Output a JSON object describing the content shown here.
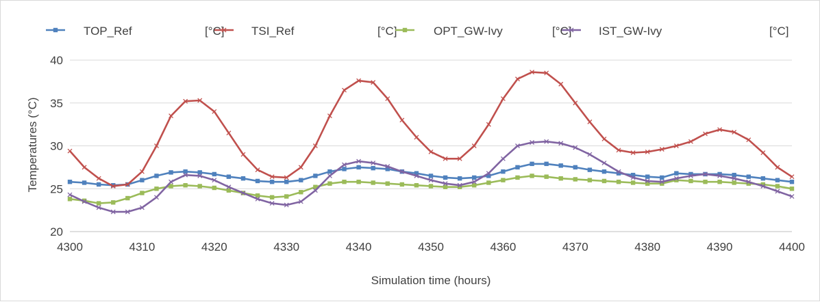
{
  "chart_data": {
    "type": "line",
    "xlabel": "Simulation time (hours)",
    "ylabel": "Temperatures (°C)",
    "xlim": [
      4300,
      4400
    ],
    "ylim": [
      20,
      40
    ],
    "xticks": [
      4300,
      4310,
      4320,
      4330,
      4340,
      4350,
      4360,
      4370,
      4380,
      4390,
      4400
    ],
    "yticks": [
      20,
      25,
      30,
      35,
      40
    ],
    "grid": "horizontal",
    "legend_position": "top",
    "x": [
      4300,
      4302,
      4304,
      4306,
      4308,
      4310,
      4312,
      4314,
      4316,
      4318,
      4320,
      4322,
      4324,
      4326,
      4328,
      4330,
      4332,
      4334,
      4336,
      4338,
      4340,
      4342,
      4344,
      4346,
      4348,
      4350,
      4352,
      4354,
      4356,
      4358,
      4360,
      4362,
      4364,
      4366,
      4368,
      4370,
      4372,
      4374,
      4376,
      4378,
      4380,
      4382,
      4384,
      4386,
      4388,
      4390,
      4392,
      4394,
      4396,
      4398,
      4400
    ],
    "series": [
      {
        "name": "TOP_Ref",
        "unit": "[°C]",
        "color": "#4f81bd",
        "marker": "square",
        "values": [
          25.8,
          25.7,
          25.5,
          25.4,
          25.5,
          26.0,
          26.5,
          26.9,
          27.0,
          26.9,
          26.7,
          26.4,
          26.2,
          25.9,
          25.8,
          25.8,
          26.0,
          26.5,
          27.0,
          27.3,
          27.5,
          27.4,
          27.3,
          27.0,
          26.8,
          26.5,
          26.3,
          26.2,
          26.3,
          26.5,
          27.0,
          27.5,
          27.9,
          27.9,
          27.7,
          27.5,
          27.2,
          27.0,
          26.8,
          26.6,
          26.4,
          26.3,
          26.8,
          26.7,
          26.7,
          26.7,
          26.6,
          26.4,
          26.2,
          26.0,
          25.8
        ]
      },
      {
        "name": "TSI_Ref",
        "unit": "[°C]",
        "color": "#c0504d",
        "marker": "x",
        "values": [
          29.4,
          27.5,
          26.2,
          25.3,
          25.5,
          27.0,
          30.0,
          33.5,
          35.2,
          35.3,
          34.0,
          31.5,
          29.0,
          27.2,
          26.4,
          26.3,
          27.5,
          30.0,
          33.5,
          36.5,
          37.6,
          37.4,
          35.5,
          33.0,
          31.0,
          29.3,
          28.5,
          28.5,
          30.0,
          32.5,
          35.5,
          37.8,
          38.6,
          38.5,
          37.2,
          35.0,
          32.8,
          30.8,
          29.5,
          29.2,
          29.3,
          29.6,
          30.0,
          30.5,
          31.4,
          31.9,
          31.6,
          30.7,
          29.2,
          27.5,
          26.4
        ]
      },
      {
        "name": "OPT_GW-Ivy",
        "unit": "[°C]",
        "color": "#9bbb59",
        "marker": "square",
        "values": [
          23.8,
          23.6,
          23.3,
          23.4,
          23.9,
          24.5,
          25.0,
          25.3,
          25.4,
          25.3,
          25.1,
          24.8,
          24.5,
          24.2,
          24.0,
          24.1,
          24.6,
          25.2,
          25.6,
          25.8,
          25.8,
          25.7,
          25.6,
          25.5,
          25.4,
          25.3,
          25.2,
          25.2,
          25.4,
          25.7,
          26.0,
          26.3,
          26.5,
          26.4,
          26.2,
          26.1,
          26.0,
          25.9,
          25.8,
          25.7,
          25.6,
          25.6,
          26.0,
          25.9,
          25.8,
          25.8,
          25.7,
          25.6,
          25.5,
          25.3,
          25.0
        ]
      },
      {
        "name": "IST_GW-Ivy",
        "unit": "[°C]",
        "color": "#8064a2",
        "marker": "x",
        "values": [
          24.3,
          23.5,
          22.8,
          22.3,
          22.3,
          22.8,
          24.0,
          25.8,
          26.6,
          26.5,
          26.0,
          25.2,
          24.5,
          23.8,
          23.3,
          23.1,
          23.5,
          24.8,
          26.5,
          27.8,
          28.2,
          28.0,
          27.6,
          27.0,
          26.5,
          26.0,
          25.6,
          25.4,
          25.8,
          26.8,
          28.5,
          30.0,
          30.4,
          30.5,
          30.3,
          29.8,
          29.0,
          28.0,
          27.0,
          26.3,
          25.9,
          25.8,
          26.2,
          26.5,
          26.7,
          26.5,
          26.2,
          25.8,
          25.3,
          24.7,
          24.1
        ]
      }
    ]
  }
}
